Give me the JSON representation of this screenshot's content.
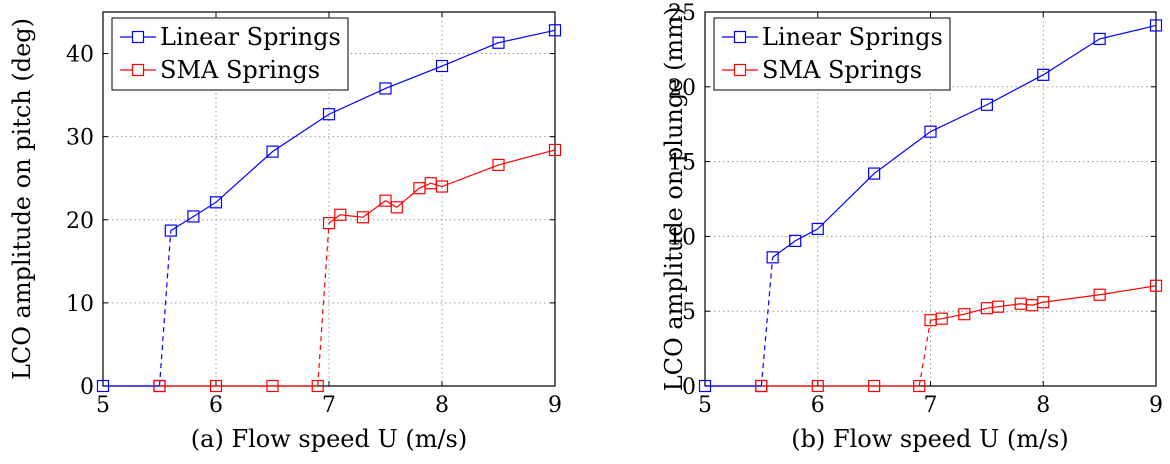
{
  "chart_data": [
    {
      "type": "line",
      "xlabel": "(a) Flow speed U (m/s)",
      "ylabel": "LCO amplitude on pitch (deg)",
      "xlim": [
        5,
        9
      ],
      "ylim": [
        0,
        45
      ],
      "xticks": [
        5,
        6,
        7,
        8,
        9
      ],
      "yticks": [
        0,
        10,
        20,
        30,
        40
      ],
      "grid": true,
      "legend_position": "top-left",
      "series": [
        {
          "name": "Linear Springs",
          "color": "#0000ff",
          "pre": [
            [
              5,
              0
            ],
            [
              5.5,
              0
            ]
          ],
          "jump": [
            [
              5.5,
              0
            ],
            [
              5.6,
              18.7
            ]
          ],
          "post": [
            [
              5.6,
              18.7
            ],
            [
              5.8,
              20.4
            ],
            [
              6,
              22.1
            ],
            [
              6.5,
              28.2
            ],
            [
              7,
              32.7
            ],
            [
              7.5,
              35.8
            ],
            [
              8,
              38.5
            ],
            [
              8.5,
              41.3
            ],
            [
              9,
              42.8
            ]
          ]
        },
        {
          "name": "SMA Springs",
          "color": "#ff0000",
          "pre": [
            [
              5.5,
              0
            ],
            [
              6,
              0
            ],
            [
              6.5,
              0
            ],
            [
              6.9,
              0
            ]
          ],
          "jump": [
            [
              6.9,
              0
            ],
            [
              7,
              19.6
            ]
          ],
          "post": [
            [
              7,
              19.6
            ],
            [
              7.1,
              20.6
            ],
            [
              7.3,
              20.3
            ],
            [
              7.5,
              22.3
            ],
            [
              7.6,
              21.5
            ],
            [
              7.8,
              23.8
            ],
            [
              7.9,
              24.4
            ],
            [
              8,
              24
            ],
            [
              8.5,
              26.6
            ],
            [
              9,
              28.4
            ]
          ]
        }
      ]
    },
    {
      "type": "line",
      "xlabel": "(b) Flow speed U (m/s)",
      "ylabel": "LCO amplitude on plunge (mm)",
      "xlim": [
        5,
        9
      ],
      "ylim": [
        0,
        25
      ],
      "xticks": [
        5,
        6,
        7,
        8,
        9
      ],
      "yticks": [
        0,
        5,
        10,
        15,
        20,
        25
      ],
      "grid": true,
      "legend_position": "top-left",
      "series": [
        {
          "name": "Linear Springs",
          "color": "#0000ff",
          "pre": [
            [
              5,
              0
            ],
            [
              5.5,
              0
            ]
          ],
          "jump": [
            [
              5.5,
              0
            ],
            [
              5.6,
              8.6
            ]
          ],
          "post": [
            [
              5.6,
              8.6
            ],
            [
              5.8,
              9.7
            ],
            [
              6,
              10.5
            ],
            [
              6.5,
              14.2
            ],
            [
              7,
              17
            ],
            [
              7.5,
              18.8
            ],
            [
              8,
              20.8
            ],
            [
              8.5,
              23.2
            ],
            [
              9,
              24.1
            ]
          ]
        },
        {
          "name": "SMA Springs",
          "color": "#ff0000",
          "pre": [
            [
              5.5,
              0
            ],
            [
              6,
              0
            ],
            [
              6.5,
              0
            ],
            [
              6.9,
              0
            ]
          ],
          "jump": [
            [
              6.9,
              0
            ],
            [
              7,
              4.4
            ]
          ],
          "post": [
            [
              7,
              4.4
            ],
            [
              7.1,
              4.5
            ],
            [
              7.3,
              4.8
            ],
            [
              7.5,
              5.2
            ],
            [
              7.6,
              5.3
            ],
            [
              7.8,
              5.5
            ],
            [
              7.9,
              5.4
            ],
            [
              8,
              5.6
            ],
            [
              8.5,
              6.1
            ],
            [
              9,
              6.7
            ]
          ]
        }
      ]
    }
  ]
}
